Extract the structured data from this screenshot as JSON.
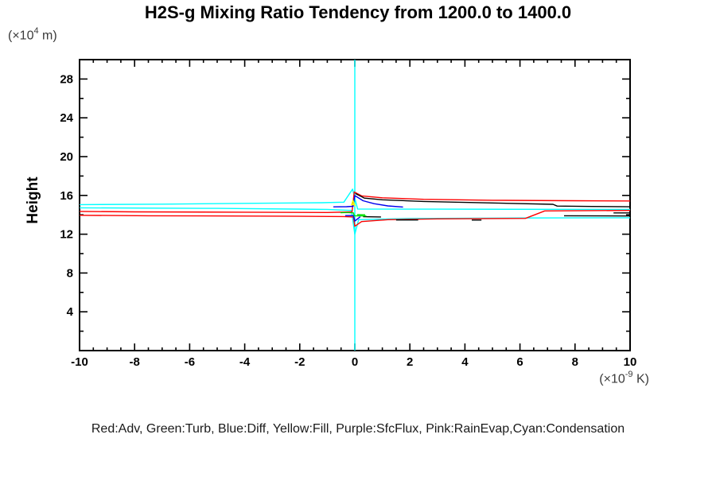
{
  "chart_data": {
    "type": "line",
    "title": "H2S-g Mixing Ratio Tendency from 1200.0 to 1400.0",
    "ylabel": "Height",
    "y_unit": {
      "prefix": "(×10",
      "exp": "4",
      "suffix": " m)"
    },
    "x_unit": {
      "prefix": "(×10",
      "exp": "-9",
      "suffix": " K)"
    },
    "legend": "Red:Adv, Green:Turb, Blue:Diff, Yellow:Fill, Purple:SfcFlux, Pink:RainEvap,Cyan:Condensation",
    "xlim": [
      -10,
      10
    ],
    "ylim": [
      0,
      30
    ],
    "xticks": {
      "major_step": 2,
      "minor_step": 0.5,
      "labels": [
        -10,
        -8,
        -6,
        -4,
        -2,
        0,
        2,
        4,
        6,
        8,
        10
      ]
    },
    "yticks": {
      "major_step": 4,
      "minor_step": 2,
      "labels": [
        4,
        8,
        12,
        16,
        20,
        24,
        28
      ]
    },
    "axis_color": "#000000",
    "grid": false,
    "legend_position": "bottom",
    "series": [
      {
        "name": "condensation-zero-vertical",
        "color": "#00ffff",
        "points": [
          [
            0,
            0
          ],
          [
            0,
            30
          ]
        ]
      },
      {
        "name": "condensation-upper",
        "color": "#00ffff",
        "points": [
          [
            -10,
            15.05
          ],
          [
            -7,
            15.1
          ],
          [
            -4,
            15.18
          ],
          [
            -1.2,
            15.25
          ],
          [
            -0.4,
            15.3
          ],
          [
            -0.08,
            16.65
          ],
          [
            0.1,
            14.6
          ],
          [
            3,
            14.58
          ],
          [
            10,
            14.55
          ]
        ]
      },
      {
        "name": "condensation-lower",
        "color": "#00ffff",
        "points": [
          [
            -10,
            14.72
          ],
          [
            -5,
            14.66
          ],
          [
            -1,
            14.56
          ],
          [
            -0.12,
            14.45
          ],
          [
            0,
            12.0
          ],
          [
            0.14,
            13.5
          ],
          [
            2,
            13.62
          ],
          [
            6,
            13.67
          ],
          [
            10,
            13.7
          ]
        ]
      },
      {
        "name": "adv-upper",
        "color": "#ff0000",
        "points": [
          [
            -10,
            14.35
          ],
          [
            -8,
            14.3
          ],
          [
            -4,
            14.27
          ],
          [
            -1,
            14.24
          ],
          [
            -0.1,
            14.3
          ],
          [
            -0.02,
            16.35
          ],
          [
            0.25,
            15.95
          ],
          [
            1,
            15.75
          ],
          [
            2.5,
            15.6
          ],
          [
            5,
            15.5
          ],
          [
            8,
            15.45
          ],
          [
            10,
            15.43
          ]
        ]
      },
      {
        "name": "adv-lower",
        "color": "#ff0000",
        "points": [
          [
            -10,
            13.95
          ],
          [
            -7.5,
            13.9
          ],
          [
            -2.5,
            13.86
          ],
          [
            -0.4,
            13.82
          ],
          [
            -0.05,
            13.78
          ],
          [
            0,
            12.82
          ],
          [
            0.25,
            13.3
          ],
          [
            1.2,
            13.5
          ],
          [
            3,
            13.58
          ],
          [
            6.2,
            13.63
          ],
          [
            6.9,
            14.4
          ],
          [
            10,
            14.45
          ]
        ]
      },
      {
        "name": "total-upper",
        "color": "#000000",
        "points": [
          [
            0.02,
            16.2
          ],
          [
            0.35,
            15.72
          ],
          [
            1,
            15.55
          ],
          [
            2.5,
            15.38
          ],
          [
            5,
            15.22
          ],
          [
            7.2,
            15.08
          ],
          [
            7.35,
            14.9
          ],
          [
            8.6,
            14.86
          ],
          [
            10,
            14.83
          ]
        ]
      },
      {
        "name": "total-lower-right",
        "color": "#000000",
        "points": [
          [
            7.6,
            13.9
          ],
          [
            10,
            13.88
          ]
        ]
      },
      {
        "name": "total-edge-right",
        "color": "#000000",
        "points": [
          [
            9.4,
            14.2
          ],
          [
            10,
            14.2
          ]
        ]
      },
      {
        "name": "total-mid-a",
        "color": "#000000",
        "points": [
          [
            0.3,
            13.8
          ],
          [
            0.95,
            13.78
          ]
        ]
      },
      {
        "name": "total-mid-b",
        "color": "#000000",
        "points": [
          [
            1.5,
            13.47
          ],
          [
            2.3,
            13.47
          ]
        ]
      },
      {
        "name": "total-mid-c",
        "color": "#000000",
        "points": [
          [
            4.25,
            13.46
          ],
          [
            4.6,
            13.46
          ]
        ]
      },
      {
        "name": "diff-spike",
        "color": "#0000ee",
        "points": [
          [
            -0.78,
            14.82
          ],
          [
            -0.3,
            14.84
          ],
          [
            -0.06,
            14.88
          ],
          [
            0,
            15.98
          ],
          [
            0.3,
            15.45
          ],
          [
            0.7,
            15.15
          ],
          [
            1.2,
            14.92
          ],
          [
            1.75,
            14.8
          ]
        ]
      },
      {
        "name": "diff-lower",
        "color": "#0000ee",
        "points": [
          [
            -0.35,
            13.92
          ],
          [
            -0.05,
            13.93
          ],
          [
            0,
            13.35
          ],
          [
            0.2,
            13.8
          ]
        ]
      },
      {
        "name": "turb-left",
        "color": "#00dd00",
        "points": [
          [
            -0.52,
            14.22
          ],
          [
            -0.28,
            14.24
          ],
          [
            -0.05,
            14.2
          ],
          [
            -0.02,
            13.9
          ],
          [
            0.42,
            13.88
          ]
        ]
      },
      {
        "name": "turb-right",
        "color": "#00dd00",
        "points": [
          [
            0.08,
            14.02
          ],
          [
            0.38,
            14.0
          ]
        ]
      },
      {
        "name": "fill-squiggle",
        "color": "#ffff00",
        "points": [
          [
            -0.12,
            14.98
          ],
          [
            -0.07,
            15.5
          ],
          [
            -0.02,
            15.12
          ],
          [
            -0.1,
            15.12
          ],
          [
            0.03,
            14.92
          ]
        ]
      }
    ]
  }
}
